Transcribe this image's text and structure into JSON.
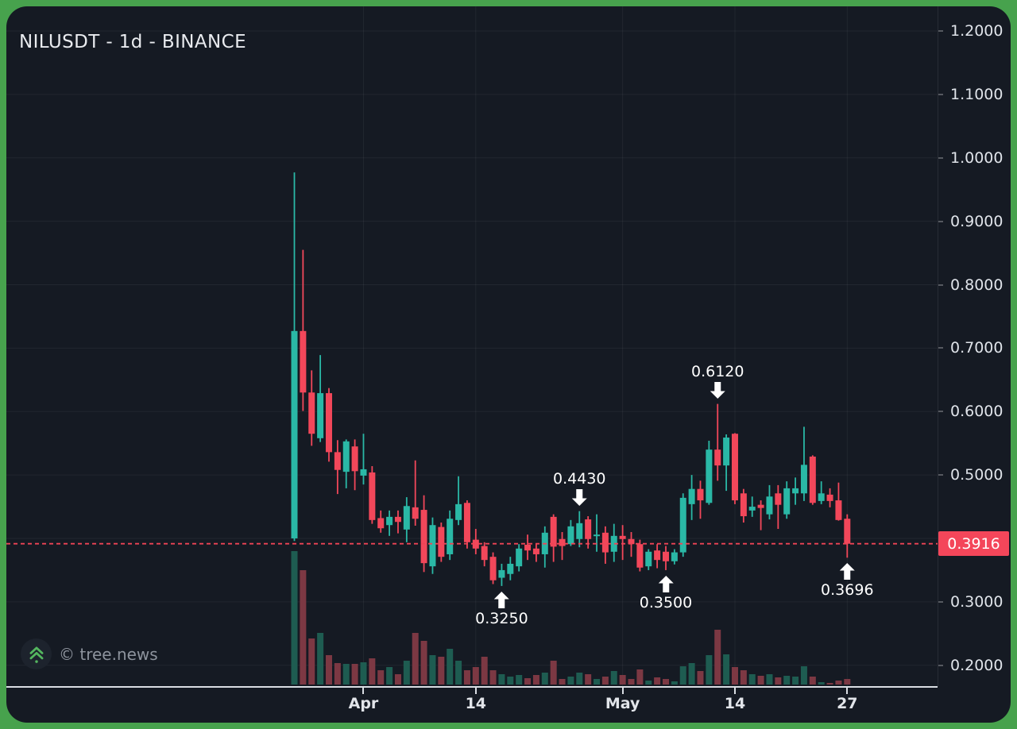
{
  "title": "NILUSDT - 1d - BINANCE",
  "watermark": {
    "text": "© tree.news"
  },
  "colors": {
    "frame_green": "#47a24d",
    "panel_bg": "#151a23",
    "up": "#2ab8a6",
    "down": "#f2475a",
    "vol_up": "#1e5c51",
    "vol_down": "#7c3843",
    "badge_bg": "#f4465a",
    "last_price_line": "#ef4456",
    "grid": "rgba(255,255,255,0.055)",
    "axis_text": "#e0e4ea",
    "annotation_text": "#ffffff",
    "logo_green": "#54b65f"
  },
  "chart_data": {
    "type": "candlestick",
    "symbol": "NILUSDT",
    "interval": "1d",
    "exchange": "BINANCE",
    "last_price_label": "0.3916",
    "last_price_value": 0.3916,
    "y_axis": {
      "max": 1.2,
      "min": 0.2,
      "grid_values": [
        1.2,
        1.1,
        1.0,
        0.9,
        0.8,
        0.7,
        0.6,
        0.5,
        0.4,
        0.3,
        0.2
      ],
      "labels": [
        {
          "text": "1.2000",
          "value": 1.2
        },
        {
          "text": "1.1000",
          "value": 1.1
        },
        {
          "text": "1.0000",
          "value": 1.0
        },
        {
          "text": "0.9000",
          "value": 0.9
        },
        {
          "text": "0.8000",
          "value": 0.8
        },
        {
          "text": "0.7000",
          "value": 0.7
        },
        {
          "text": "0.6000",
          "value": 0.6
        },
        {
          "text": "0.5000",
          "value": 0.5
        },
        {
          "text": "0.3000",
          "value": 0.3
        },
        {
          "text": "0.2000",
          "value": 0.2
        }
      ]
    },
    "x_axis": {
      "ticks": [
        {
          "label": "Apr",
          "candle_index": 8
        },
        {
          "label": "14",
          "candle_index": 21
        },
        {
          "label": "May",
          "candle_index": 38
        },
        {
          "label": "14",
          "candle_index": 51
        },
        {
          "label": "27",
          "candle_index": 64
        }
      ]
    },
    "annotations": [
      {
        "text": "0.3250",
        "price": 0.325,
        "candle_index": 24,
        "placement": "below"
      },
      {
        "text": "0.4430",
        "price": 0.443,
        "candle_index": 33,
        "placement": "above"
      },
      {
        "text": "0.3500",
        "price": 0.35,
        "candle_index": 43,
        "placement": "below"
      },
      {
        "text": "0.6120",
        "price": 0.612,
        "candle_index": 49,
        "placement": "above"
      },
      {
        "text": "0.3696",
        "price": 0.3696,
        "candle_index": 64,
        "placement": "below"
      }
    ],
    "candles": [
      {
        "o": 0.4,
        "h": 0.977,
        "l": 0.396,
        "c": 0.727,
        "v": 168
      },
      {
        "o": 0.727,
        "h": 0.855,
        "l": 0.601,
        "c": 0.63,
        "v": 144
      },
      {
        "o": 0.63,
        "h": 0.665,
        "l": 0.546,
        "c": 0.565,
        "v": 58
      },
      {
        "o": 0.558,
        "h": 0.689,
        "l": 0.552,
        "c": 0.629,
        "v": 65
      },
      {
        "o": 0.629,
        "h": 0.637,
        "l": 0.521,
        "c": 0.536,
        "v": 37
      },
      {
        "o": 0.536,
        "h": 0.555,
        "l": 0.47,
        "c": 0.508,
        "v": 27
      },
      {
        "o": 0.505,
        "h": 0.556,
        "l": 0.479,
        "c": 0.553,
        "v": 26
      },
      {
        "o": 0.545,
        "h": 0.556,
        "l": 0.476,
        "c": 0.506,
        "v": 26
      },
      {
        "o": 0.499,
        "h": 0.565,
        "l": 0.485,
        "c": 0.509,
        "v": 28
      },
      {
        "o": 0.504,
        "h": 0.514,
        "l": 0.423,
        "c": 0.429,
        "v": 33
      },
      {
        "o": 0.432,
        "h": 0.444,
        "l": 0.409,
        "c": 0.416,
        "v": 18
      },
      {
        "o": 0.421,
        "h": 0.444,
        "l": 0.404,
        "c": 0.434,
        "v": 22
      },
      {
        "o": 0.434,
        "h": 0.444,
        "l": 0.408,
        "c": 0.426,
        "v": 13
      },
      {
        "o": 0.414,
        "h": 0.465,
        "l": 0.394,
        "c": 0.451,
        "v": 30
      },
      {
        "o": 0.449,
        "h": 0.523,
        "l": 0.42,
        "c": 0.431,
        "v": 65
      },
      {
        "o": 0.445,
        "h": 0.468,
        "l": 0.347,
        "c": 0.361,
        "v": 55
      },
      {
        "o": 0.356,
        "h": 0.433,
        "l": 0.344,
        "c": 0.421,
        "v": 37
      },
      {
        "o": 0.418,
        "h": 0.425,
        "l": 0.363,
        "c": 0.371,
        "v": 35
      },
      {
        "o": 0.375,
        "h": 0.444,
        "l": 0.366,
        "c": 0.431,
        "v": 45
      },
      {
        "o": 0.429,
        "h": 0.498,
        "l": 0.421,
        "c": 0.454,
        "v": 30
      },
      {
        "o": 0.456,
        "h": 0.46,
        "l": 0.384,
        "c": 0.394,
        "v": 18
      },
      {
        "o": 0.398,
        "h": 0.415,
        "l": 0.375,
        "c": 0.384,
        "v": 22
      },
      {
        "o": 0.388,
        "h": 0.394,
        "l": 0.356,
        "c": 0.366,
        "v": 35
      },
      {
        "o": 0.371,
        "h": 0.378,
        "l": 0.328,
        "c": 0.334,
        "v": 18
      },
      {
        "o": 0.338,
        "h": 0.36,
        "l": 0.325,
        "c": 0.35,
        "v": 13
      },
      {
        "o": 0.344,
        "h": 0.371,
        "l": 0.334,
        "c": 0.36,
        "v": 10
      },
      {
        "o": 0.356,
        "h": 0.391,
        "l": 0.348,
        "c": 0.384,
        "v": 12
      },
      {
        "o": 0.39,
        "h": 0.406,
        "l": 0.366,
        "c": 0.381,
        "v": 8
      },
      {
        "o": 0.384,
        "h": 0.391,
        "l": 0.363,
        "c": 0.375,
        "v": 12
      },
      {
        "o": 0.375,
        "h": 0.419,
        "l": 0.354,
        "c": 0.409,
        "v": 15
      },
      {
        "o": 0.434,
        "h": 0.438,
        "l": 0.363,
        "c": 0.387,
        "v": 30
      },
      {
        "o": 0.399,
        "h": 0.41,
        "l": 0.366,
        "c": 0.388,
        "v": 7
      },
      {
        "o": 0.391,
        "h": 0.429,
        "l": 0.388,
        "c": 0.419,
        "v": 10
      },
      {
        "o": 0.399,
        "h": 0.443,
        "l": 0.386,
        "c": 0.424,
        "v": 15
      },
      {
        "o": 0.43,
        "h": 0.435,
        "l": 0.384,
        "c": 0.399,
        "v": 13
      },
      {
        "o": 0.404,
        "h": 0.438,
        "l": 0.379,
        "c": 0.406,
        "v": 7
      },
      {
        "o": 0.409,
        "h": 0.419,
        "l": 0.36,
        "c": 0.378,
        "v": 10
      },
      {
        "o": 0.379,
        "h": 0.423,
        "l": 0.363,
        "c": 0.404,
        "v": 17
      },
      {
        "o": 0.404,
        "h": 0.421,
        "l": 0.366,
        "c": 0.399,
        "v": 12
      },
      {
        "o": 0.399,
        "h": 0.41,
        "l": 0.371,
        "c": 0.391,
        "v": 7
      },
      {
        "o": 0.391,
        "h": 0.398,
        "l": 0.348,
        "c": 0.354,
        "v": 19
      },
      {
        "o": 0.356,
        "h": 0.383,
        "l": 0.35,
        "c": 0.379,
        "v": 5
      },
      {
        "o": 0.381,
        "h": 0.391,
        "l": 0.353,
        "c": 0.366,
        "v": 9
      },
      {
        "o": 0.379,
        "h": 0.388,
        "l": 0.35,
        "c": 0.364,
        "v": 7
      },
      {
        "o": 0.364,
        "h": 0.383,
        "l": 0.359,
        "c": 0.378,
        "v": 4
      },
      {
        "o": 0.378,
        "h": 0.471,
        "l": 0.371,
        "c": 0.464,
        "v": 23
      },
      {
        "o": 0.454,
        "h": 0.5,
        "l": 0.429,
        "c": 0.478,
        "v": 27
      },
      {
        "o": 0.478,
        "h": 0.491,
        "l": 0.431,
        "c": 0.46,
        "v": 17
      },
      {
        "o": 0.456,
        "h": 0.554,
        "l": 0.453,
        "c": 0.54,
        "v": 37
      },
      {
        "o": 0.54,
        "h": 0.612,
        "l": 0.491,
        "c": 0.515,
        "v": 69
      },
      {
        "o": 0.515,
        "h": 0.564,
        "l": 0.475,
        "c": 0.559,
        "v": 38
      },
      {
        "o": 0.565,
        "h": 0.566,
        "l": 0.454,
        "c": 0.46,
        "v": 22
      },
      {
        "o": 0.471,
        "h": 0.478,
        "l": 0.425,
        "c": 0.435,
        "v": 18
      },
      {
        "o": 0.444,
        "h": 0.466,
        "l": 0.434,
        "c": 0.45,
        "v": 13
      },
      {
        "o": 0.453,
        "h": 0.46,
        "l": 0.413,
        "c": 0.448,
        "v": 11
      },
      {
        "o": 0.438,
        "h": 0.484,
        "l": 0.43,
        "c": 0.466,
        "v": 13
      },
      {
        "o": 0.471,
        "h": 0.484,
        "l": 0.415,
        "c": 0.453,
        "v": 9
      },
      {
        "o": 0.438,
        "h": 0.49,
        "l": 0.431,
        "c": 0.479,
        "v": 11
      },
      {
        "o": 0.471,
        "h": 0.496,
        "l": 0.453,
        "c": 0.479,
        "v": 10
      },
      {
        "o": 0.471,
        "h": 0.576,
        "l": 0.459,
        "c": 0.516,
        "v": 23
      },
      {
        "o": 0.529,
        "h": 0.531,
        "l": 0.453,
        "c": 0.456,
        "v": 10
      },
      {
        "o": 0.459,
        "h": 0.49,
        "l": 0.454,
        "c": 0.471,
        "v": 3
      },
      {
        "o": 0.469,
        "h": 0.479,
        "l": 0.449,
        "c": 0.459,
        "v": 2
      },
      {
        "o": 0.46,
        "h": 0.488,
        "l": 0.428,
        "c": 0.429,
        "v": 5
      },
      {
        "o": 0.431,
        "h": 0.438,
        "l": 0.3696,
        "c": 0.3916,
        "v": 7
      }
    ]
  }
}
